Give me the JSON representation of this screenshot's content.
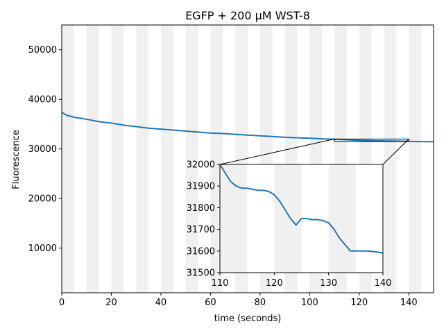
{
  "chart_data": {
    "type": "line",
    "title": "EGFP + 200 μM WST-8",
    "xlabel": "time (seconds)",
    "ylabel": "Fluorescence",
    "xlim": [
      0,
      150
    ],
    "ylim": [
      1000,
      55000
    ],
    "xticks": [
      0,
      20,
      40,
      60,
      80,
      100,
      120,
      140
    ],
    "yticks": [
      10000,
      20000,
      30000,
      40000,
      50000
    ],
    "grid": false,
    "line_color": "#1f77b4",
    "shade_color": "#f0f0f0",
    "shaded_intervals": [
      [
        0,
        5
      ],
      [
        10,
        15
      ],
      [
        20,
        25
      ],
      [
        30,
        35
      ],
      [
        40,
        45
      ],
      [
        50,
        55
      ],
      [
        60,
        65
      ],
      [
        70,
        75
      ],
      [
        80,
        85
      ],
      [
        90,
        95
      ],
      [
        100,
        105
      ],
      [
        110,
        115
      ],
      [
        120,
        125
      ],
      [
        130,
        135
      ],
      [
        140,
        145
      ]
    ],
    "series": [
      {
        "x": [
          0,
          2,
          5,
          10,
          15,
          20,
          25,
          30,
          35,
          40,
          45,
          50,
          55,
          60,
          65,
          70,
          75,
          80,
          85,
          90,
          95,
          100,
          105,
          110,
          115,
          120,
          125,
          130,
          135,
          140,
          145,
          150
        ],
        "y": [
          37400,
          36800,
          36400,
          36000,
          35500,
          35200,
          34800,
          34500,
          34200,
          34000,
          33800,
          33600,
          33400,
          33200,
          33100,
          32950,
          32800,
          32650,
          32500,
          32350,
          32250,
          32150,
          32050,
          31950,
          31850,
          31750,
          31680,
          31620,
          31580,
          31520,
          31480,
          31450
        ]
      }
    ],
    "inset": {
      "xlim": [
        110,
        140
      ],
      "ylim": [
        31500,
        32000
      ],
      "xticks": [
        110,
        120,
        130,
        140
      ],
      "yticks": [
        31500,
        31600,
        31700,
        31800,
        31900,
        32000
      ],
      "x": [
        110,
        111,
        112,
        113,
        114,
        115,
        116,
        117,
        118,
        119,
        120,
        121,
        122,
        123,
        124,
        125,
        126,
        127,
        128,
        129,
        130,
        131,
        132,
        133,
        134,
        135,
        136,
        137,
        138,
        139,
        140
      ],
      "y": [
        32000,
        31960,
        31920,
        31900,
        31890,
        31890,
        31885,
        31880,
        31880,
        31875,
        31860,
        31830,
        31790,
        31750,
        31720,
        31750,
        31750,
        31745,
        31745,
        31740,
        31730,
        31700,
        31660,
        31630,
        31600,
        31600,
        31600,
        31600,
        31598,
        31595,
        31590
      ]
    }
  }
}
